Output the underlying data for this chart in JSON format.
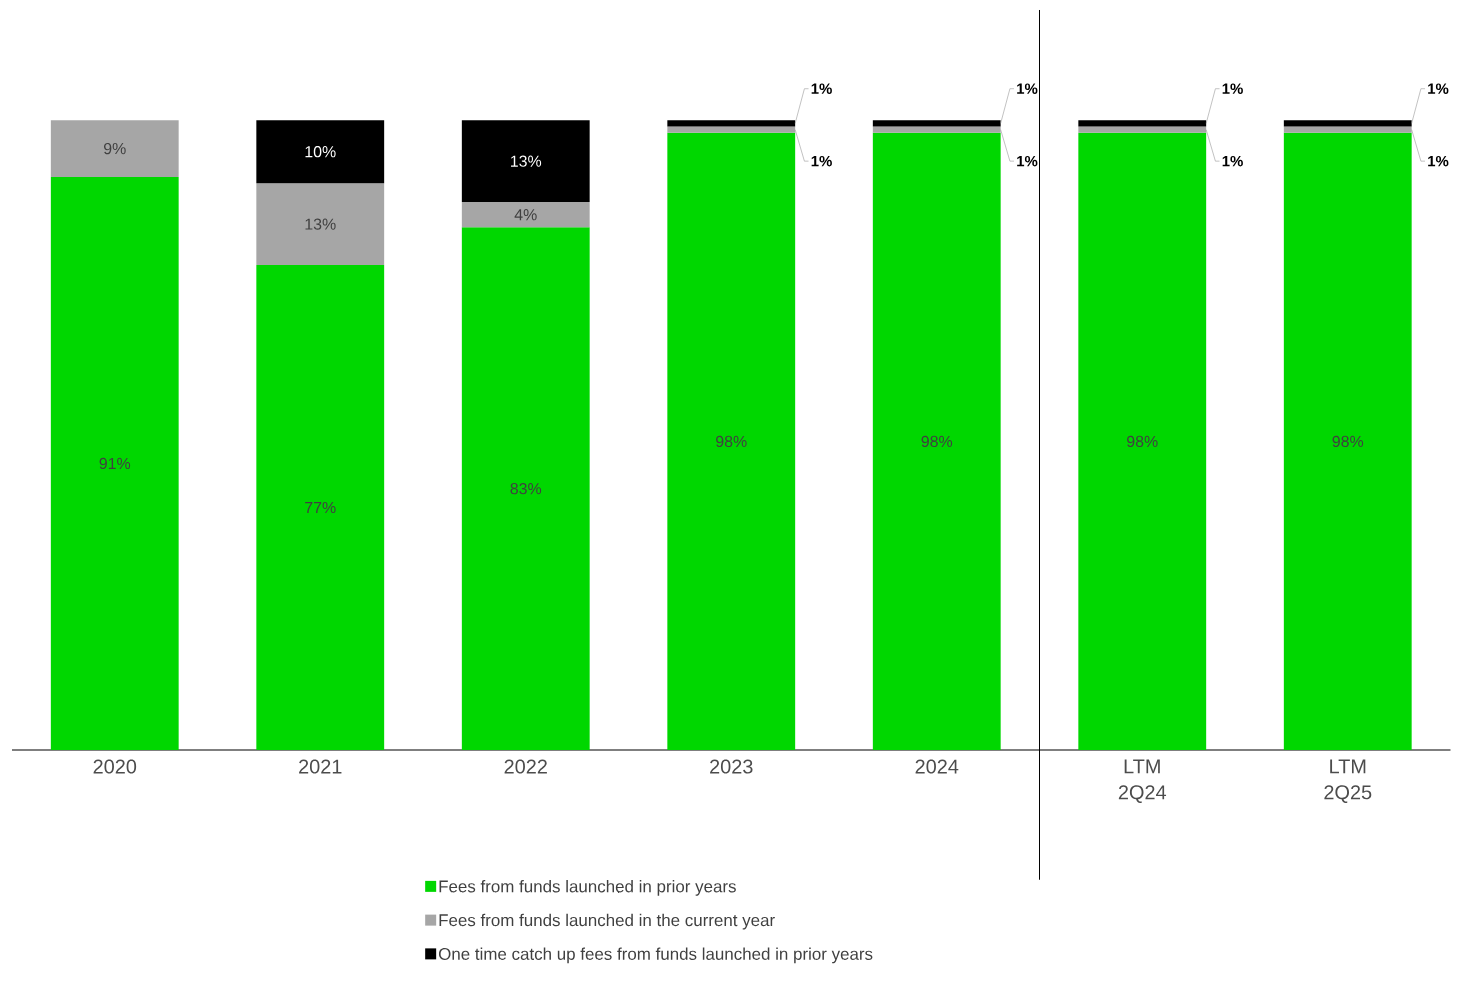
{
  "chart_data": {
    "type": "bar",
    "stacked": true,
    "legend": "bottom",
    "categories": [
      "2020",
      "2021",
      "2022",
      "2023",
      "2024",
      "LTM 2Q24",
      "LTM 2Q25"
    ],
    "series": [
      {
        "name": "Fees from funds launched in prior years",
        "color": "#00d700",
        "values": [
          91,
          77,
          83,
          98,
          98,
          98,
          98
        ],
        "value_labels": [
          "91%",
          "77%",
          "83%",
          "98%",
          "98%",
          "98%",
          "98%"
        ]
      },
      {
        "name": "Fees from funds launched in the current year",
        "color": "#a6a6a6",
        "values": [
          9,
          13,
          4,
          1,
          1,
          1,
          1
        ],
        "value_labels": [
          "9%",
          "13%",
          "4%",
          "1%",
          "1%",
          "1%",
          "1%"
        ]
      },
      {
        "name": "One time catch up fees from funds launched in prior years",
        "color": "#000000",
        "values": [
          null,
          10,
          13,
          1,
          1,
          1,
          1
        ],
        "value_labels": [
          null,
          "10%",
          "13%",
          "1%",
          "1%",
          "1%",
          "1%"
        ]
      }
    ]
  }
}
